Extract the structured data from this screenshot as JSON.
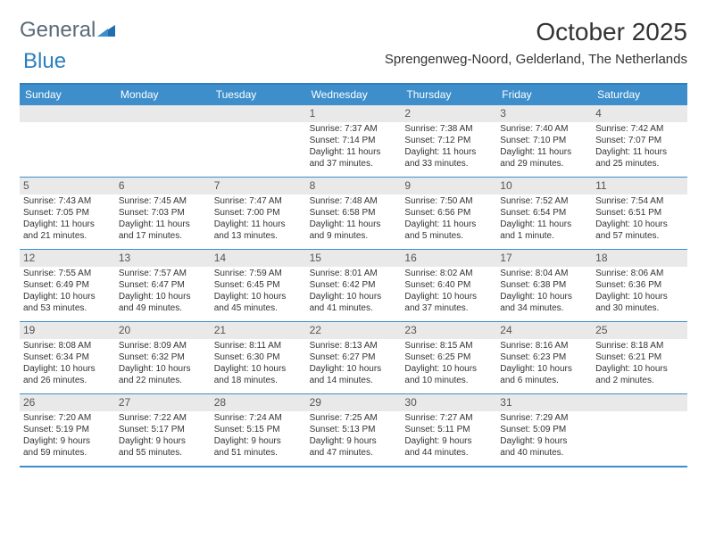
{
  "brand": {
    "part1": "General",
    "part2": "Blue"
  },
  "title": "October 2025",
  "location": "Sprengenweg-Noord, Gelderland, The Netherlands",
  "colors": {
    "header_bg": "#3d8ecb",
    "header_border": "#2f7fc1",
    "daynum_bg": "#e9e9e9",
    "text": "#333333",
    "logo_gray": "#5a6a78",
    "logo_blue": "#2a7fbf",
    "triangle": "#1f6fb0"
  },
  "typography": {
    "title_fontsize": 28,
    "location_fontsize": 15,
    "dayhead_fontsize": 12,
    "cell_fontsize": 10,
    "daynum_fontsize": 12
  },
  "day_headers": [
    "Sunday",
    "Monday",
    "Tuesday",
    "Wednesday",
    "Thursday",
    "Friday",
    "Saturday"
  ],
  "weeks": [
    [
      {
        "blank": true
      },
      {
        "blank": true
      },
      {
        "blank": true
      },
      {
        "day": "1",
        "sunrise": "Sunrise: 7:37 AM",
        "sunset": "Sunset: 7:14 PM",
        "dl1": "Daylight: 11 hours",
        "dl2": "and 37 minutes."
      },
      {
        "day": "2",
        "sunrise": "Sunrise: 7:38 AM",
        "sunset": "Sunset: 7:12 PM",
        "dl1": "Daylight: 11 hours",
        "dl2": "and 33 minutes."
      },
      {
        "day": "3",
        "sunrise": "Sunrise: 7:40 AM",
        "sunset": "Sunset: 7:10 PM",
        "dl1": "Daylight: 11 hours",
        "dl2": "and 29 minutes."
      },
      {
        "day": "4",
        "sunrise": "Sunrise: 7:42 AM",
        "sunset": "Sunset: 7:07 PM",
        "dl1": "Daylight: 11 hours",
        "dl2": "and 25 minutes."
      }
    ],
    [
      {
        "day": "5",
        "sunrise": "Sunrise: 7:43 AM",
        "sunset": "Sunset: 7:05 PM",
        "dl1": "Daylight: 11 hours",
        "dl2": "and 21 minutes."
      },
      {
        "day": "6",
        "sunrise": "Sunrise: 7:45 AM",
        "sunset": "Sunset: 7:03 PM",
        "dl1": "Daylight: 11 hours",
        "dl2": "and 17 minutes."
      },
      {
        "day": "7",
        "sunrise": "Sunrise: 7:47 AM",
        "sunset": "Sunset: 7:00 PM",
        "dl1": "Daylight: 11 hours",
        "dl2": "and 13 minutes."
      },
      {
        "day": "8",
        "sunrise": "Sunrise: 7:48 AM",
        "sunset": "Sunset: 6:58 PM",
        "dl1": "Daylight: 11 hours",
        "dl2": "and 9 minutes."
      },
      {
        "day": "9",
        "sunrise": "Sunrise: 7:50 AM",
        "sunset": "Sunset: 6:56 PM",
        "dl1": "Daylight: 11 hours",
        "dl2": "and 5 minutes."
      },
      {
        "day": "10",
        "sunrise": "Sunrise: 7:52 AM",
        "sunset": "Sunset: 6:54 PM",
        "dl1": "Daylight: 11 hours",
        "dl2": "and 1 minute."
      },
      {
        "day": "11",
        "sunrise": "Sunrise: 7:54 AM",
        "sunset": "Sunset: 6:51 PM",
        "dl1": "Daylight: 10 hours",
        "dl2": "and 57 minutes."
      }
    ],
    [
      {
        "day": "12",
        "sunrise": "Sunrise: 7:55 AM",
        "sunset": "Sunset: 6:49 PM",
        "dl1": "Daylight: 10 hours",
        "dl2": "and 53 minutes."
      },
      {
        "day": "13",
        "sunrise": "Sunrise: 7:57 AM",
        "sunset": "Sunset: 6:47 PM",
        "dl1": "Daylight: 10 hours",
        "dl2": "and 49 minutes."
      },
      {
        "day": "14",
        "sunrise": "Sunrise: 7:59 AM",
        "sunset": "Sunset: 6:45 PM",
        "dl1": "Daylight: 10 hours",
        "dl2": "and 45 minutes."
      },
      {
        "day": "15",
        "sunrise": "Sunrise: 8:01 AM",
        "sunset": "Sunset: 6:42 PM",
        "dl1": "Daylight: 10 hours",
        "dl2": "and 41 minutes."
      },
      {
        "day": "16",
        "sunrise": "Sunrise: 8:02 AM",
        "sunset": "Sunset: 6:40 PM",
        "dl1": "Daylight: 10 hours",
        "dl2": "and 37 minutes."
      },
      {
        "day": "17",
        "sunrise": "Sunrise: 8:04 AM",
        "sunset": "Sunset: 6:38 PM",
        "dl1": "Daylight: 10 hours",
        "dl2": "and 34 minutes."
      },
      {
        "day": "18",
        "sunrise": "Sunrise: 8:06 AM",
        "sunset": "Sunset: 6:36 PM",
        "dl1": "Daylight: 10 hours",
        "dl2": "and 30 minutes."
      }
    ],
    [
      {
        "day": "19",
        "sunrise": "Sunrise: 8:08 AM",
        "sunset": "Sunset: 6:34 PM",
        "dl1": "Daylight: 10 hours",
        "dl2": "and 26 minutes."
      },
      {
        "day": "20",
        "sunrise": "Sunrise: 8:09 AM",
        "sunset": "Sunset: 6:32 PM",
        "dl1": "Daylight: 10 hours",
        "dl2": "and 22 minutes."
      },
      {
        "day": "21",
        "sunrise": "Sunrise: 8:11 AM",
        "sunset": "Sunset: 6:30 PM",
        "dl1": "Daylight: 10 hours",
        "dl2": "and 18 minutes."
      },
      {
        "day": "22",
        "sunrise": "Sunrise: 8:13 AM",
        "sunset": "Sunset: 6:27 PM",
        "dl1": "Daylight: 10 hours",
        "dl2": "and 14 minutes."
      },
      {
        "day": "23",
        "sunrise": "Sunrise: 8:15 AM",
        "sunset": "Sunset: 6:25 PM",
        "dl1": "Daylight: 10 hours",
        "dl2": "and 10 minutes."
      },
      {
        "day": "24",
        "sunrise": "Sunrise: 8:16 AM",
        "sunset": "Sunset: 6:23 PM",
        "dl1": "Daylight: 10 hours",
        "dl2": "and 6 minutes."
      },
      {
        "day": "25",
        "sunrise": "Sunrise: 8:18 AM",
        "sunset": "Sunset: 6:21 PM",
        "dl1": "Daylight: 10 hours",
        "dl2": "and 2 minutes."
      }
    ],
    [
      {
        "day": "26",
        "sunrise": "Sunrise: 7:20 AM",
        "sunset": "Sunset: 5:19 PM",
        "dl1": "Daylight: 9 hours",
        "dl2": "and 59 minutes."
      },
      {
        "day": "27",
        "sunrise": "Sunrise: 7:22 AM",
        "sunset": "Sunset: 5:17 PM",
        "dl1": "Daylight: 9 hours",
        "dl2": "and 55 minutes."
      },
      {
        "day": "28",
        "sunrise": "Sunrise: 7:24 AM",
        "sunset": "Sunset: 5:15 PM",
        "dl1": "Daylight: 9 hours",
        "dl2": "and 51 minutes."
      },
      {
        "day": "29",
        "sunrise": "Sunrise: 7:25 AM",
        "sunset": "Sunset: 5:13 PM",
        "dl1": "Daylight: 9 hours",
        "dl2": "and 47 minutes."
      },
      {
        "day": "30",
        "sunrise": "Sunrise: 7:27 AM",
        "sunset": "Sunset: 5:11 PM",
        "dl1": "Daylight: 9 hours",
        "dl2": "and 44 minutes."
      },
      {
        "day": "31",
        "sunrise": "Sunrise: 7:29 AM",
        "sunset": "Sunset: 5:09 PM",
        "dl1": "Daylight: 9 hours",
        "dl2": "and 40 minutes."
      },
      {
        "blank": true
      }
    ]
  ]
}
